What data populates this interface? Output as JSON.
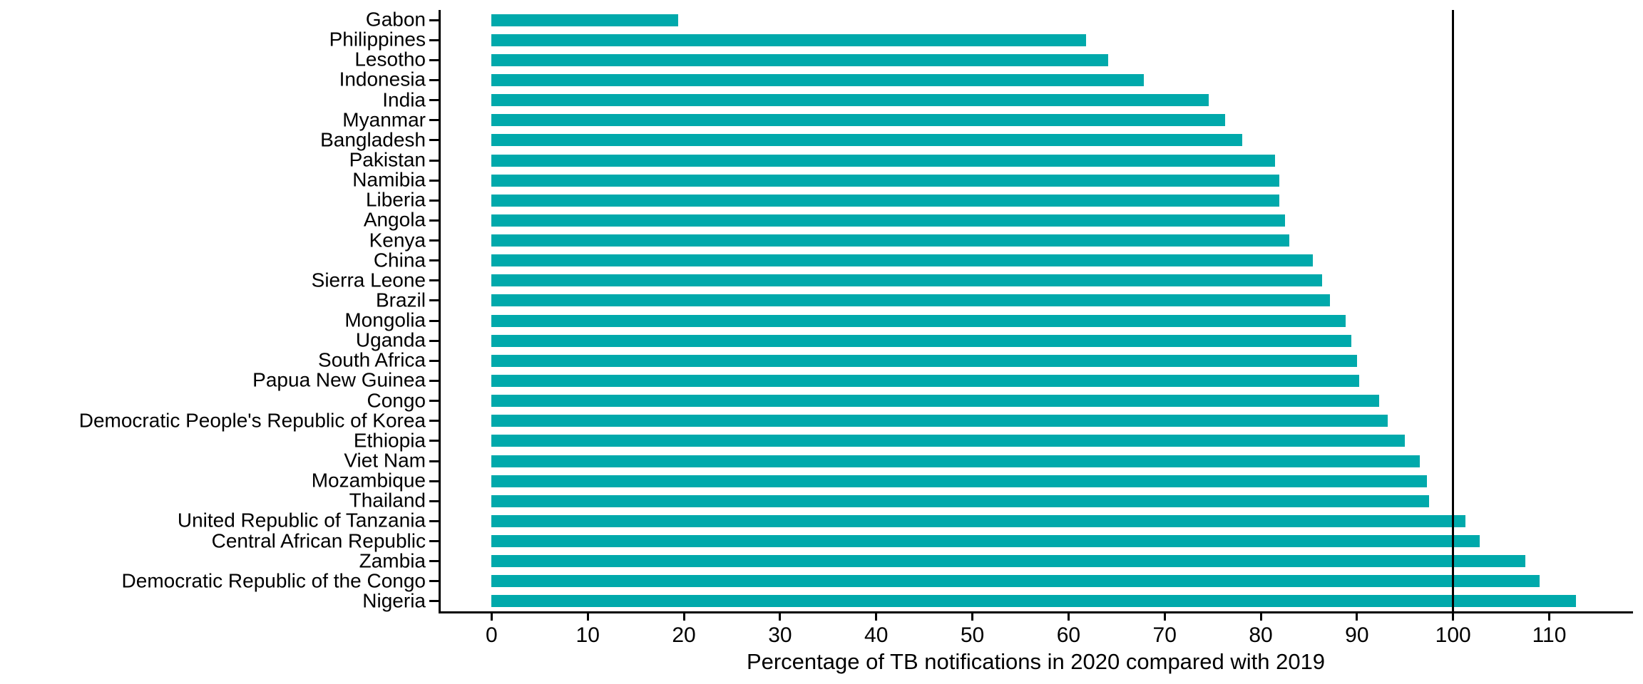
{
  "chart_data": {
    "type": "bar",
    "orientation": "horizontal",
    "title": "",
    "xlabel": "Percentage of TB notifications in 2020 compared with 2019",
    "ylabel": "",
    "categories": [
      "Gabon",
      "Philippines",
      "Lesotho",
      "Indonesia",
      "India",
      "Myanmar",
      "Bangladesh",
      "Pakistan",
      "Namibia",
      "Liberia",
      "Angola",
      "Kenya",
      "China",
      "Sierra Leone",
      "Brazil",
      "Mongolia",
      "Uganda",
      "South Africa",
      "Papua New Guinea",
      "Congo",
      "Democratic People's Republic of Korea",
      "Ethiopia",
      "Viet Nam",
      "Mozambique",
      "Thailand",
      "United Republic of Tanzania",
      "Central African Republic",
      "Zambia",
      "Democratic Republic of the Congo",
      "Nigeria"
    ],
    "values": [
      19.4,
      61.8,
      64.1,
      67.8,
      74.6,
      76.3,
      78.1,
      81.5,
      81.9,
      81.9,
      82.5,
      83.0,
      85.4,
      86.4,
      87.2,
      88.8,
      89.4,
      90.0,
      90.2,
      92.3,
      93.2,
      95.0,
      96.5,
      97.3,
      97.5,
      101.3,
      102.8,
      107.5,
      109.0,
      112.8
    ],
    "x_ticks": [
      0,
      10,
      20,
      30,
      40,
      50,
      60,
      70,
      80,
      90,
      100,
      110
    ],
    "xlim": [
      -5.5,
      118.7
    ],
    "reference_line_x": 100,
    "grid": false,
    "legend": "none",
    "bar_color": "#00A9AB",
    "axis_color": "#000000",
    "text_color": "#000000"
  }
}
